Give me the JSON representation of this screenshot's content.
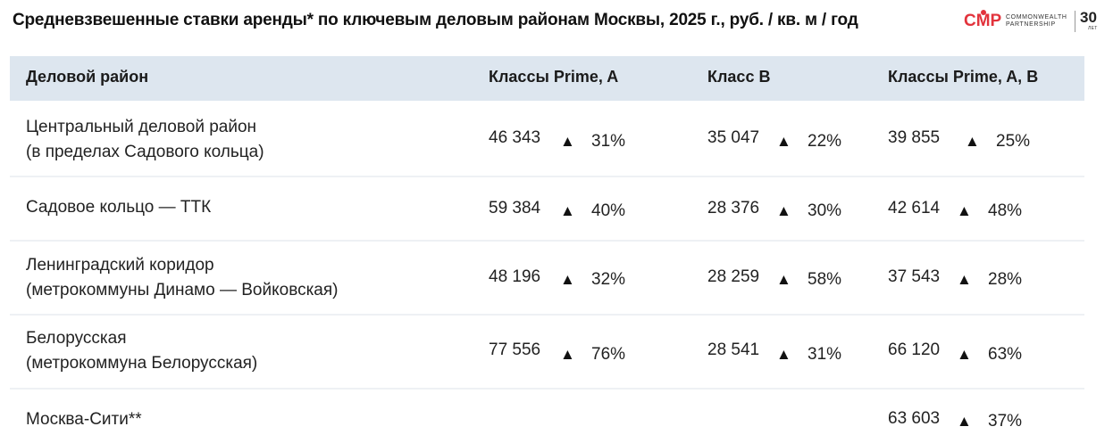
{
  "title": "Средневзвешенные ставки аренды* по ключевым деловым районам Москвы, 2025 г., руб. / кв. м / год",
  "logo": {
    "mark": "CMP",
    "line1": "COMMONWEALTH",
    "line2": "PARTNERSHIP",
    "years": "30",
    "years_label": "ЛЕТ",
    "colors": {
      "brand": "#e2333c"
    }
  },
  "table": {
    "headers": [
      "Деловой район",
      "Классы Prime, A",
      "Класс B",
      "Классы Prime, A, B"
    ],
    "arrow_symbol": "▲",
    "rows": [
      {
        "name_line1": "Центральный деловой район",
        "name_line2": "(в пределах Садового кольца)",
        "prime_a": {
          "value": "46 343",
          "change": "31%"
        },
        "class_b": {
          "value": "35 047",
          "change": "22%"
        },
        "all": {
          "value": "39 855",
          "change": "25%"
        }
      },
      {
        "name_line1": "Садовое кольцо — ТТК",
        "name_line2": "",
        "prime_a": {
          "value": "59 384",
          "change": "40%"
        },
        "class_b": {
          "value": "28 376",
          "change": "30%"
        },
        "all": {
          "value": "42 614",
          "change": "48%"
        }
      },
      {
        "name_line1": "Ленинградский коридор",
        "name_line2": "(метрокоммуны Динамо — Войковская)",
        "prime_a": {
          "value": "48 196",
          "change": "32%"
        },
        "class_b": {
          "value": "28 259",
          "change": "58%"
        },
        "all": {
          "value": "37 543",
          "change": "28%"
        }
      },
      {
        "name_line1": "Белорусская",
        "name_line2": "(метрокоммуна Белорусская)",
        "prime_a": {
          "value": "77 556",
          "change": "76%"
        },
        "class_b": {
          "value": "28 541",
          "change": "31%"
        },
        "all": {
          "value": "66 120",
          "change": "63%"
        }
      },
      {
        "name_line1": "Москва-Сити**",
        "name_line2": "",
        "prime_a": {
          "value": "",
          "change": ""
        },
        "class_b": {
          "value": "",
          "change": ""
        },
        "all": {
          "value": "63 603",
          "change": "37%"
        }
      }
    ]
  }
}
